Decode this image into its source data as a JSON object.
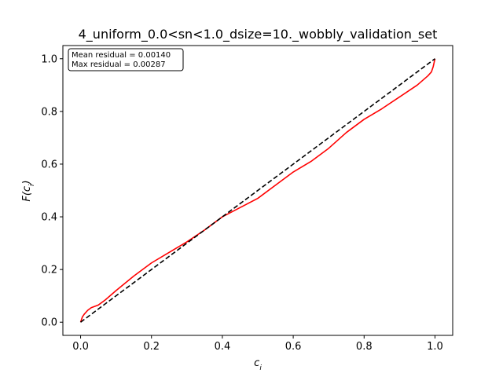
{
  "chart_data": {
    "type": "line",
    "title": "4_uniform_0.0<sn<1.0_dsize=10._wobbly_validation_set",
    "xlabel": "c_i",
    "ylabel": "F(c_i)",
    "xlim": [
      -0.05,
      1.05
    ],
    "ylim": [
      -0.05,
      1.05
    ],
    "x_ticks": [
      0.0,
      0.2,
      0.4,
      0.6,
      0.8,
      1.0
    ],
    "y_ticks": [
      0.0,
      0.2,
      0.4,
      0.6,
      0.8,
      1.0
    ],
    "x_tick_labels": [
      "0.0",
      "0.2",
      "0.4",
      "0.6",
      "0.8",
      "1.0"
    ],
    "y_tick_labels": [
      "0.0",
      "0.2",
      "0.4",
      "0.6",
      "0.8",
      "1.0"
    ],
    "grid": false,
    "annotation": {
      "lines": [
        "Mean residual = 0.00140",
        "Max residual = 0.00287"
      ],
      "placement": "top-left"
    },
    "series": [
      {
        "color": "#ff0000",
        "style": "solid",
        "x": [
          0.0,
          0.005,
          0.01,
          0.02,
          0.03,
          0.05,
          0.07,
          0.1,
          0.15,
          0.2,
          0.25,
          0.3,
          0.35,
          0.4,
          0.45,
          0.5,
          0.55,
          0.6,
          0.65,
          0.7,
          0.75,
          0.8,
          0.85,
          0.9,
          0.95,
          0.98,
          0.99,
          0.995,
          1.0
        ],
        "y": [
          0.0,
          0.02,
          0.03,
          0.045,
          0.055,
          0.065,
          0.085,
          0.12,
          0.175,
          0.225,
          0.265,
          0.305,
          0.35,
          0.4,
          0.435,
          0.47,
          0.52,
          0.57,
          0.61,
          0.66,
          0.72,
          0.77,
          0.81,
          0.855,
          0.9,
          0.935,
          0.95,
          0.97,
          1.0
        ]
      },
      {
        "color": "#000000",
        "style": "dashed",
        "x": [
          0.0,
          1.0
        ],
        "y": [
          0.0,
          1.0
        ]
      }
    ]
  }
}
